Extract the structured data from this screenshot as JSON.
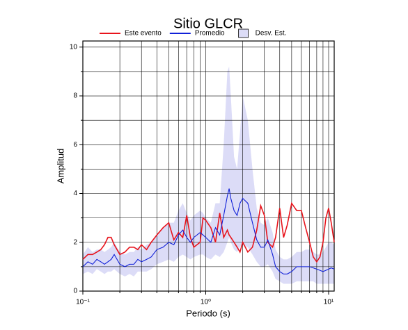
{
  "chart_data": {
    "type": "line",
    "title": "Sitio GLCR",
    "xlabel": "Periodo (s)",
    "ylabel": "Amplitud",
    "xscale": "log",
    "grid": true,
    "xlim": [
      0.1,
      11.1
    ],
    "ylim": [
      0,
      10.25
    ],
    "xticks": [
      {
        "value": 0.1,
        "label": "10⁻¹"
      },
      {
        "value": 1,
        "label": "10⁰"
      },
      {
        "value": 10,
        "label": "10¹"
      }
    ],
    "xminor": [
      0.2,
      0.3,
      0.4,
      0.5,
      0.6,
      0.7,
      0.8,
      0.9,
      2,
      3,
      4,
      5,
      6,
      7,
      8,
      9
    ],
    "yticks": [
      0,
      2,
      4,
      6,
      8,
      10
    ],
    "yminor": [
      1,
      3,
      5,
      7,
      9
    ],
    "x": [
      0.1,
      0.11,
      0.12,
      0.13,
      0.14,
      0.15,
      0.16,
      0.17,
      0.18,
      0.2,
      0.22,
      0.24,
      0.26,
      0.28,
      0.3,
      0.33,
      0.36,
      0.4,
      0.45,
      0.5,
      0.55,
      0.6,
      0.65,
      0.7,
      0.75,
      0.8,
      0.9,
      0.95,
      1.0,
      1.1,
      1.2,
      1.3,
      1.4,
      1.5,
      1.55,
      1.6,
      1.7,
      1.8,
      1.9,
      2.0,
      2.2,
      2.4,
      2.6,
      2.8,
      3.0,
      3.2,
      3.5,
      3.7,
      4.0,
      4.3,
      4.6,
      5.0,
      5.5,
      6.0,
      6.5,
      7.0,
      7.5,
      8.0,
      8.5,
      9.0,
      9.5,
      10.0,
      10.5,
      11.1
    ],
    "series": [
      {
        "name": "Este evento",
        "color": "#e8141c",
        "values": [
          1.3,
          1.5,
          1.5,
          1.6,
          1.7,
          1.9,
          2.2,
          2.2,
          1.9,
          1.5,
          1.6,
          1.8,
          1.8,
          1.7,
          1.9,
          1.7,
          2.0,
          2.3,
          2.6,
          2.8,
          2.1,
          2.4,
          2.2,
          3.1,
          2.2,
          1.8,
          2.0,
          3.0,
          2.9,
          2.6,
          2.0,
          3.2,
          2.2,
          2.5,
          2.3,
          2.2,
          2.0,
          1.8,
          1.6,
          2.0,
          1.6,
          1.8,
          2.5,
          3.5,
          3.1,
          2.0,
          1.8,
          2.2,
          3.4,
          2.2,
          2.7,
          3.6,
          3.3,
          3.3,
          2.6,
          2.0,
          1.4,
          1.2,
          1.4,
          2.0,
          3.0,
          3.4,
          2.8,
          2.0
        ]
      },
      {
        "name": "Promedio",
        "color": "#1020d8",
        "values": [
          1.0,
          1.2,
          1.1,
          1.3,
          1.2,
          1.1,
          1.2,
          1.3,
          1.5,
          1.1,
          1.0,
          1.1,
          1.1,
          1.3,
          1.2,
          1.3,
          1.4,
          1.7,
          1.8,
          2.0,
          1.9,
          2.3,
          2.5,
          2.2,
          2.0,
          2.2,
          2.4,
          2.3,
          2.2,
          2.0,
          2.6,
          2.3,
          3.1,
          3.9,
          4.2,
          3.8,
          3.3,
          3.1,
          3.6,
          3.8,
          3.6,
          2.8,
          2.1,
          1.8,
          1.8,
          2.1,
          1.5,
          1.0,
          0.8,
          0.7,
          0.7,
          0.8,
          1.0,
          1.0,
          1.0,
          1.0,
          0.95,
          0.9,
          0.85,
          0.8,
          0.85,
          0.9,
          0.95,
          0.9
        ]
      },
      {
        "name": "Desv. Est.",
        "color": "#dcdcf7",
        "upper": [
          1.5,
          1.8,
          1.6,
          1.7,
          1.7,
          1.6,
          1.7,
          1.8,
          2.0,
          1.6,
          1.5,
          1.6,
          1.6,
          1.8,
          1.7,
          1.9,
          2.0,
          2.3,
          2.6,
          2.8,
          2.8,
          3.3,
          3.6,
          3.2,
          2.9,
          3.1,
          3.3,
          3.2,
          3.0,
          2.8,
          3.6,
          3.6,
          6.0,
          9.0,
          9.2,
          8.0,
          5.5,
          5.0,
          6.5,
          8.0,
          7.0,
          5.0,
          3.4,
          2.8,
          2.7,
          3.0,
          2.4,
          1.7,
          1.4,
          1.3,
          1.3,
          1.4,
          1.6,
          1.6,
          1.7,
          1.7,
          1.6,
          1.5,
          1.5,
          1.6,
          1.8,
          2.0,
          2.0,
          1.9
        ],
        "lower": [
          0.7,
          0.8,
          0.7,
          0.9,
          0.8,
          0.7,
          0.8,
          0.8,
          0.9,
          0.7,
          0.6,
          0.7,
          0.6,
          0.8,
          0.8,
          0.8,
          0.9,
          1.1,
          1.2,
          1.3,
          1.2,
          1.4,
          1.5,
          1.4,
          1.3,
          1.4,
          1.5,
          1.5,
          1.4,
          1.3,
          1.5,
          1.4,
          1.6,
          2.0,
          2.2,
          2.0,
          1.7,
          1.6,
          1.8,
          1.9,
          1.8,
          1.5,
          1.2,
          1.0,
          1.0,
          1.1,
          0.8,
          0.5,
          0.4,
          0.3,
          0.3,
          0.3,
          0.4,
          0.4,
          0.4,
          0.4,
          0.4,
          0.3,
          0.3,
          0.3,
          0.3,
          0.3,
          0.3,
          0.3
        ]
      }
    ]
  }
}
